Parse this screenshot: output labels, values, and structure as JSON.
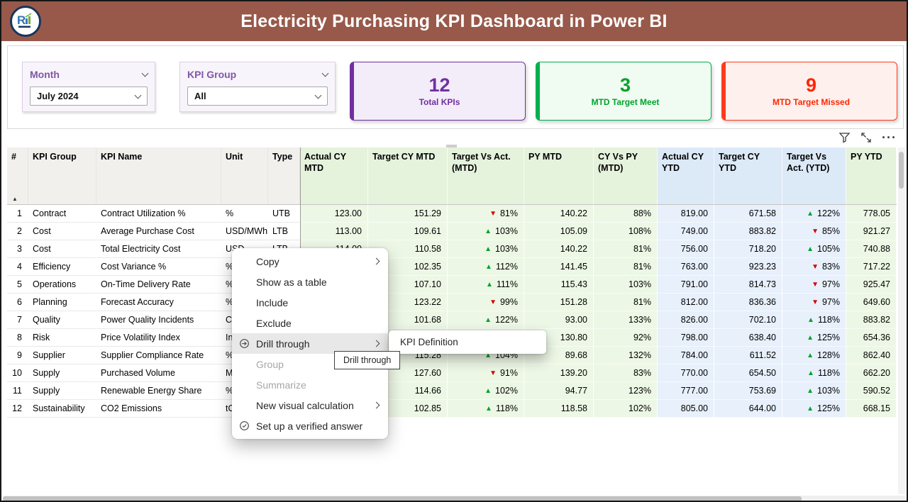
{
  "header": {
    "title": "Electricity Purchasing KPI Dashboard in Power BI",
    "logo_text": "R"
  },
  "slicers": [
    {
      "label": "Month",
      "value": "July 2024"
    },
    {
      "label": "KPI Group",
      "value": "All"
    }
  ],
  "cards": [
    {
      "value": "12",
      "label": "Total KPIs",
      "accent_color": "#7030A0"
    },
    {
      "value": "3",
      "label": "MTD Target Meet",
      "accent_color": "#00B050"
    },
    {
      "value": "9",
      "label": "MTD Target Missed",
      "accent_color": "#FF2B0F"
    }
  ],
  "visual_header_icons": [
    "filter-icon",
    "focus-mode-icon",
    "more-options-icon"
  ],
  "table": {
    "sort": {
      "column": "#",
      "direction": "ascending"
    },
    "colors": {
      "up": "#00A229",
      "down": "#D40000",
      "mtd_section": "#E5F2DC",
      "ytd_section": "#DCE9F7"
    },
    "columns": [
      "#",
      "KPI Group",
      "KPI Name",
      "Unit",
      "Type",
      "Actual CY MTD",
      "Target CY MTD",
      "Target Vs Act. (MTD)",
      "PY MTD",
      "CY Vs PY (MTD)",
      "Actual CY YTD",
      "Target CY YTD",
      "Target Vs Act. (YTD)",
      "PY YTD"
    ],
    "rows": [
      [
        "1",
        "Contract",
        "Contract Utilization %",
        "%",
        "UTB",
        "123.00",
        "151.29",
        "▼ 81%",
        "140.22",
        "88%",
        "819.00",
        "671.58",
        "▲ 122%",
        "778.05"
      ],
      [
        "2",
        "Cost",
        "Average Purchase Cost",
        "USD/MWh",
        "LTB",
        "113.00",
        "109.61",
        "▲ 103%",
        "105.09",
        "108%",
        "749.00",
        "883.82",
        "▼ 85%",
        "921.27"
      ],
      [
        "3",
        "Cost",
        "Total Electricity Cost",
        "USD",
        "LTB",
        "114.00",
        "110.58",
        "▲ 103%",
        "140.22",
        "81%",
        "756.00",
        "718.20",
        "▲ 105%",
        "740.88"
      ],
      [
        "4",
        "Efficiency",
        "Cost Variance %",
        "%",
        "",
        "",
        "102.35",
        "▲ 112%",
        "141.45",
        "81%",
        "763.00",
        "923.23",
        "▼ 83%",
        "717.22"
      ],
      [
        "5",
        "Operations",
        "On-Time Delivery Rate",
        "%",
        "",
        "",
        "107.10",
        "▲ 111%",
        "115.43",
        "103%",
        "791.00",
        "814.73",
        "▼ 97%",
        "925.47"
      ],
      [
        "6",
        "Planning",
        "Forecast Accuracy",
        "%",
        "",
        "",
        "123.22",
        "▼ 99%",
        "151.28",
        "81%",
        "812.00",
        "836.36",
        "▼ 97%",
        "649.60"
      ],
      [
        "7",
        "Quality",
        "Power Quality Incidents",
        "Coun",
        "",
        "",
        "101.68",
        "▲ 122%",
        "93.00",
        "133%",
        "826.00",
        "702.10",
        "▲ 118%",
        "883.82"
      ],
      [
        "8",
        "Risk",
        "Price Volatility Index",
        "Inde",
        "",
        "",
        "",
        "",
        "130.80",
        "92%",
        "798.00",
        "638.40",
        "▲ 125%",
        "654.36"
      ],
      [
        "9",
        "Supplier",
        "Supplier Compliance Rate",
        "%",
        "",
        "",
        "115.28",
        "▲ 104%",
        "89.68",
        "132%",
        "784.00",
        "611.52",
        "▲ 128%",
        "862.40"
      ],
      [
        "10",
        "Supply",
        "Purchased Volume",
        "MWh",
        "",
        "",
        "127.60",
        "▼ 91%",
        "139.20",
        "83%",
        "770.00",
        "654.50",
        "▲ 118%",
        "662.20"
      ],
      [
        "11",
        "Supply",
        "Renewable Energy Share",
        "%",
        "",
        "",
        "114.66",
        "▲ 102%",
        "94.77",
        "123%",
        "777.00",
        "753.69",
        "▲ 103%",
        "590.52"
      ],
      [
        "12",
        "Sustainability",
        "CO2 Emissions",
        "tCO2",
        "",
        "",
        "102.85",
        "▲ 118%",
        "118.58",
        "102%",
        "805.00",
        "644.00",
        "▲ 125%",
        "668.15"
      ]
    ]
  },
  "context_menu": {
    "items": [
      {
        "label": "Copy",
        "chevron": true
      },
      {
        "label": "Show as a table"
      },
      {
        "label": "Include"
      },
      {
        "label": "Exclude"
      },
      {
        "label": "Drill through",
        "chevron": true,
        "highlighted": true,
        "icon": "drill-through-icon"
      },
      {
        "label": "Group",
        "disabled": true
      },
      {
        "label": "Summarize",
        "disabled": true
      },
      {
        "label": "New visual calculation",
        "chevron": true
      },
      {
        "label": "Set up a verified answer",
        "icon": "verified-answer-icon"
      }
    ],
    "submenu": {
      "label": "KPI Definition"
    },
    "tooltip": "Drill through"
  }
}
